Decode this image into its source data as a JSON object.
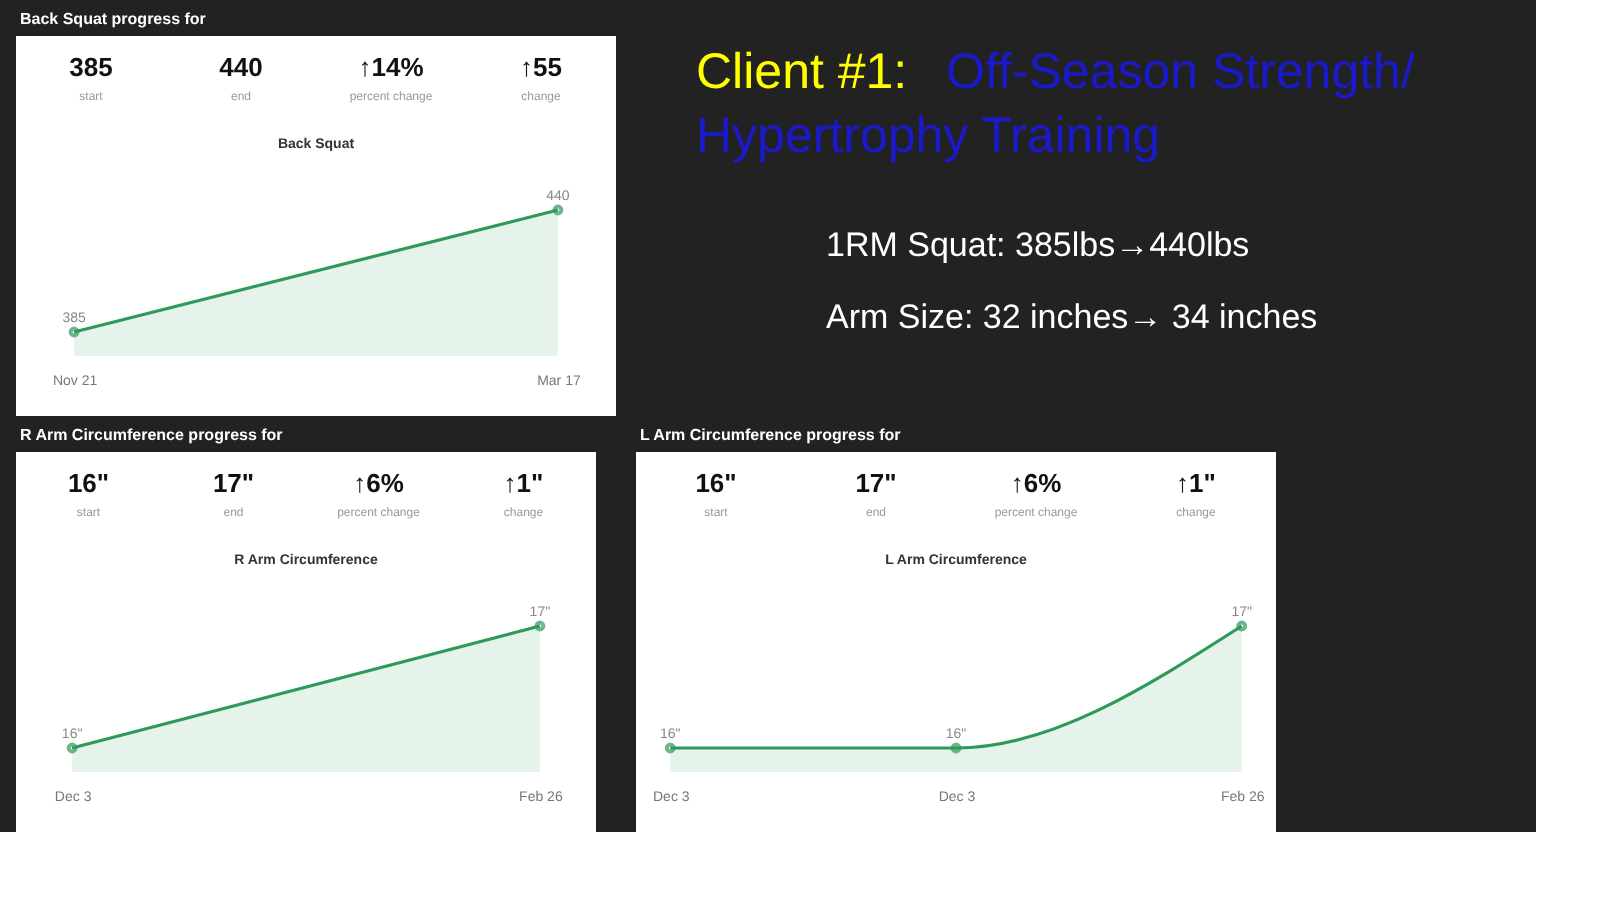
{
  "chart_data": [
    {
      "type": "area",
      "title": "Back Squat",
      "categories": [
        "Nov 21",
        "Mar 17"
      ],
      "series": [
        {
          "color": "#2e9a5a",
          "values": [
            385,
            440
          ]
        }
      ],
      "data_labels": true,
      "marker": "circle",
      "tick_labels": "x",
      "annotations": [
        "Back Squat progress for",
        "385",
        "start",
        "440",
        "end",
        "↑14%",
        "percent change",
        "↑55",
        "change"
      ]
    },
    {
      "type": "other",
      "annotations": [
        "Client #1:",
        "Off-Season Strength/",
        "Hypertrophy Training",
        "1RM Squat: 385lbs→440lbs",
        "Arm Size: 32 inches→ 34 inches"
      ]
    },
    {
      "type": "area",
      "title": "R Arm Circumference",
      "categories": [
        "Dec 3",
        "Feb 26"
      ],
      "series": [
        {
          "color": "#2e9a5a",
          "values": [
            16,
            17
          ],
          "value_labels": [
            "16\"",
            "17\""
          ]
        }
      ],
      "marker": "circle",
      "tick_labels": "x",
      "annotations": [
        "R Arm Circumference progress for",
        "16\"",
        "start",
        "17\"",
        "end",
        "↑6%",
        "percent change",
        "↑1\"",
        "change"
      ]
    },
    {
      "type": "area",
      "title": "L Arm Circumference",
      "categories": [
        "Dec 3",
        "Dec 3",
        "Feb 26"
      ],
      "series": [
        {
          "color": "#2e9a5a",
          "values": [
            16,
            16,
            17
          ],
          "value_labels": [
            "16\"",
            "16\"",
            "17\""
          ]
        }
      ],
      "marker": "circle",
      "tick_labels": "x",
      "annotations": [
        "L Arm Circumference progress for",
        "16\"",
        "start",
        "17\"",
        "end",
        "↑6%",
        "percent change",
        "↑1\"",
        "change"
      ]
    }
  ]
}
